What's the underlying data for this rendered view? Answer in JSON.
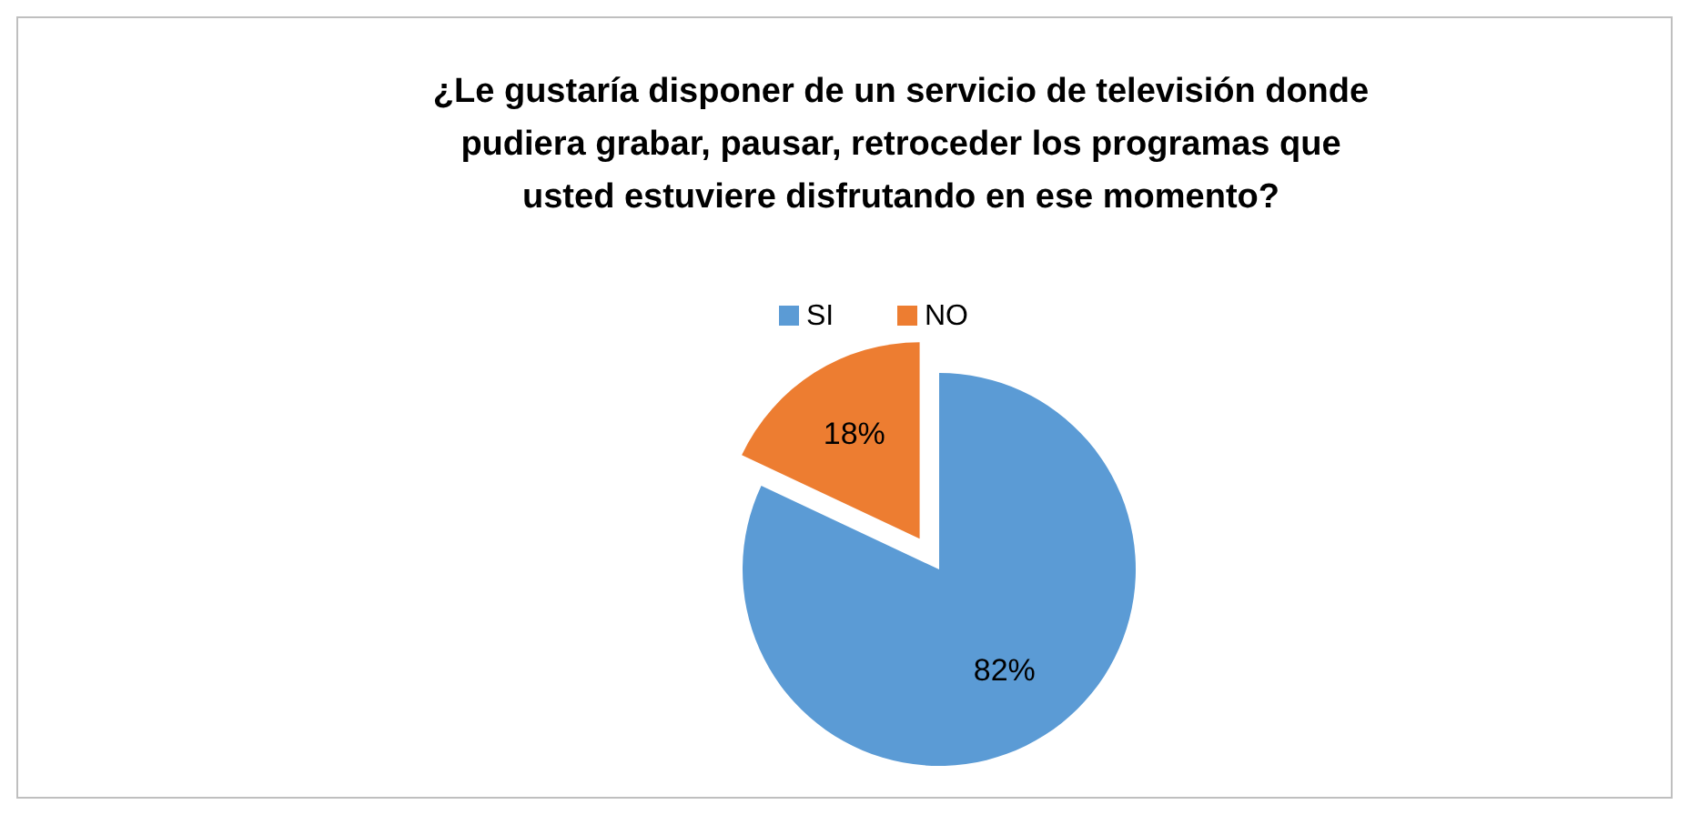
{
  "chart_data": {
    "type": "pie",
    "title": "¿Le gustaría disponer de un servicio de televisión donde pudiera grabar, pausar, retroceder los programas que usted estuviere disfrutando en ese momento?",
    "categories": [
      "SI",
      "NO"
    ],
    "values": [
      82,
      18
    ],
    "colors": [
      "#5b9bd5",
      "#ed7d31"
    ],
    "value_labels": [
      "82%",
      "18%"
    ],
    "legend": "top"
  }
}
